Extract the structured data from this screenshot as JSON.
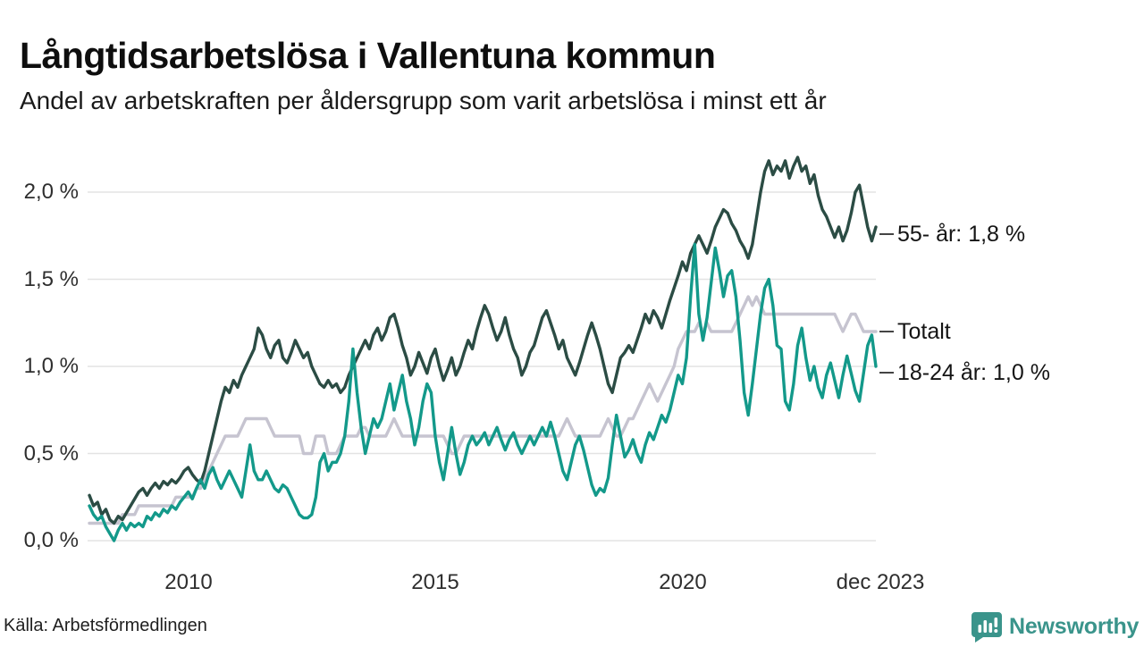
{
  "header": {
    "title": "Långtidsarbetslösa i Vallentuna kommun",
    "subtitle": "Andel av arbetskraften per åldersgrupp som varit arbetslösa i minst ett år"
  },
  "chart_data": {
    "type": "line",
    "title": "Långtidsarbetslösa i Vallentuna kommun",
    "subtitle": "Andel av arbetskraften per åldersgrupp som varit arbetslösa i minst ett år",
    "unit": "%",
    "x_frequency": "monthly",
    "grid": true,
    "grid_color": "#e3e3e3",
    "ylim": [
      0,
      2.25
    ],
    "y_grid_values": [
      0,
      0.5,
      1.0,
      1.5,
      2.0
    ],
    "y_tick_labels": [
      "2,0 %",
      "1,5 %",
      "1,0 %",
      "0,5 %",
      "0,0 %"
    ],
    "x_tick_labels": [
      "2010",
      "2015",
      "2020",
      "dec 2023"
    ],
    "x_tick_indices": [
      24,
      84,
      144,
      191
    ],
    "annotations": [
      {
        "label": "55- år: 1,8 %",
        "series": "55- år",
        "end_value": 1.8
      },
      {
        "label": "Totalt",
        "series": "Totalt",
        "end_value": 1.2
      },
      {
        "label": "18-24 år: 1,0 %",
        "series": "18-24 år",
        "end_value": 1.0
      }
    ],
    "series": [
      {
        "name": "Totalt",
        "color": "#c6c4d0",
        "values": [
          0.1,
          0.1,
          0.1,
          0.1,
          0.1,
          0.1,
          0.1,
          0.1,
          0.15,
          0.15,
          0.15,
          0.15,
          0.2,
          0.2,
          0.2,
          0.2,
          0.2,
          0.2,
          0.2,
          0.2,
          0.2,
          0.25,
          0.25,
          0.25,
          0.25,
          0.25,
          0.3,
          0.3,
          0.35,
          0.4,
          0.45,
          0.5,
          0.55,
          0.6,
          0.6,
          0.6,
          0.6,
          0.65,
          0.7,
          0.7,
          0.7,
          0.7,
          0.7,
          0.7,
          0.65,
          0.6,
          0.6,
          0.6,
          0.6,
          0.6,
          0.6,
          0.6,
          0.5,
          0.5,
          0.5,
          0.6,
          0.6,
          0.6,
          0.5,
          0.5,
          0.5,
          0.55,
          0.6,
          0.6,
          0.6,
          0.6,
          0.65,
          0.65,
          0.6,
          0.6,
          0.6,
          0.6,
          0.6,
          0.65,
          0.7,
          0.65,
          0.6,
          0.6,
          0.6,
          0.6,
          0.6,
          0.6,
          0.6,
          0.6,
          0.6,
          0.6,
          0.6,
          0.55,
          0.5,
          0.5,
          0.55,
          0.6,
          0.6,
          0.6,
          0.6,
          0.6,
          0.6,
          0.6,
          0.6,
          0.6,
          0.6,
          0.6,
          0.6,
          0.6,
          0.6,
          0.6,
          0.6,
          0.6,
          0.6,
          0.6,
          0.6,
          0.6,
          0.6,
          0.6,
          0.6,
          0.65,
          0.7,
          0.65,
          0.6,
          0.6,
          0.6,
          0.6,
          0.6,
          0.6,
          0.6,
          0.65,
          0.7,
          0.65,
          0.6,
          0.6,
          0.65,
          0.7,
          0.7,
          0.75,
          0.8,
          0.85,
          0.9,
          0.85,
          0.8,
          0.85,
          0.9,
          0.95,
          1.0,
          1.1,
          1.15,
          1.2,
          1.2,
          1.2,
          1.25,
          1.2,
          1.25,
          1.2,
          1.2,
          1.2,
          1.2,
          1.2,
          1.2,
          1.25,
          1.3,
          1.35,
          1.4,
          1.35,
          1.4,
          1.35,
          1.3,
          1.3,
          1.3,
          1.3,
          1.3,
          1.3,
          1.3,
          1.3,
          1.3,
          1.3,
          1.3,
          1.3,
          1.3,
          1.3,
          1.3,
          1.3,
          1.3,
          1.3,
          1.25,
          1.2,
          1.25,
          1.3,
          1.3,
          1.25,
          1.2,
          1.2,
          1.2,
          1.2
        ]
      },
      {
        "name": "55- år",
        "color": "#2b4c44",
        "values": [
          0.26,
          0.2,
          0.22,
          0.15,
          0.18,
          0.12,
          0.1,
          0.14,
          0.12,
          0.16,
          0.2,
          0.24,
          0.28,
          0.3,
          0.26,
          0.3,
          0.33,
          0.3,
          0.34,
          0.32,
          0.35,
          0.33,
          0.36,
          0.4,
          0.42,
          0.38,
          0.35,
          0.33,
          0.4,
          0.5,
          0.6,
          0.7,
          0.8,
          0.88,
          0.85,
          0.92,
          0.88,
          0.95,
          1.0,
          1.05,
          1.1,
          1.22,
          1.18,
          1.1,
          1.05,
          1.12,
          1.15,
          1.05,
          1.02,
          1.08,
          1.15,
          1.1,
          1.05,
          1.08,
          1.0,
          0.95,
          0.9,
          0.88,
          0.92,
          0.88,
          0.9,
          0.85,
          0.88,
          0.95,
          1.0,
          1.05,
          1.1,
          1.15,
          1.1,
          1.18,
          1.22,
          1.15,
          1.2,
          1.28,
          1.3,
          1.22,
          1.12,
          1.05,
          0.95,
          1.0,
          1.08,
          1.02,
          0.96,
          1.05,
          1.1,
          1.0,
          0.92,
          0.98,
          1.05,
          0.95,
          1.0,
          1.08,
          1.15,
          1.1,
          1.2,
          1.28,
          1.35,
          1.3,
          1.22,
          1.15,
          1.2,
          1.28,
          1.18,
          1.1,
          1.05,
          0.95,
          1.0,
          1.08,
          1.12,
          1.2,
          1.28,
          1.32,
          1.25,
          1.18,
          1.1,
          1.15,
          1.05,
          1.0,
          0.95,
          1.02,
          1.1,
          1.18,
          1.25,
          1.18,
          1.1,
          1.0,
          0.9,
          0.85,
          0.95,
          1.05,
          1.08,
          1.12,
          1.08,
          1.15,
          1.22,
          1.3,
          1.25,
          1.32,
          1.28,
          1.22,
          1.3,
          1.38,
          1.45,
          1.52,
          1.6,
          1.55,
          1.65,
          1.7,
          1.75,
          1.7,
          1.65,
          1.72,
          1.8,
          1.85,
          1.9,
          1.88,
          1.82,
          1.78,
          1.72,
          1.68,
          1.62,
          1.7,
          1.85,
          2.0,
          2.12,
          2.18,
          2.1,
          2.15,
          2.12,
          2.18,
          2.08,
          2.15,
          2.2,
          2.12,
          2.15,
          2.05,
          2.1,
          1.98,
          1.9,
          1.86,
          1.8,
          1.74,
          1.8,
          1.72,
          1.78,
          1.88,
          2.0,
          2.04,
          1.92,
          1.8,
          1.72,
          1.8
        ]
      },
      {
        "name": "18-24 år",
        "color": "#13998a",
        "values": [
          0.2,
          0.15,
          0.12,
          0.14,
          0.08,
          0.04,
          0.0,
          0.06,
          0.1,
          0.06,
          0.1,
          0.08,
          0.1,
          0.08,
          0.14,
          0.12,
          0.16,
          0.14,
          0.18,
          0.16,
          0.2,
          0.18,
          0.22,
          0.25,
          0.28,
          0.24,
          0.3,
          0.35,
          0.3,
          0.38,
          0.42,
          0.35,
          0.3,
          0.35,
          0.4,
          0.35,
          0.3,
          0.25,
          0.4,
          0.55,
          0.4,
          0.35,
          0.35,
          0.4,
          0.35,
          0.3,
          0.28,
          0.32,
          0.3,
          0.25,
          0.2,
          0.15,
          0.13,
          0.13,
          0.15,
          0.25,
          0.45,
          0.5,
          0.4,
          0.45,
          0.45,
          0.5,
          0.6,
          0.8,
          1.1,
          0.85,
          0.65,
          0.5,
          0.6,
          0.7,
          0.65,
          0.7,
          0.8,
          0.9,
          0.75,
          0.85,
          0.95,
          0.8,
          0.7,
          0.55,
          0.65,
          0.8,
          0.9,
          0.85,
          0.6,
          0.45,
          0.35,
          0.5,
          0.65,
          0.5,
          0.38,
          0.45,
          0.55,
          0.6,
          0.55,
          0.58,
          0.62,
          0.55,
          0.6,
          0.65,
          0.58,
          0.52,
          0.58,
          0.62,
          0.55,
          0.5,
          0.55,
          0.6,
          0.55,
          0.6,
          0.65,
          0.6,
          0.68,
          0.6,
          0.5,
          0.4,
          0.35,
          0.45,
          0.55,
          0.6,
          0.52,
          0.42,
          0.32,
          0.26,
          0.3,
          0.28,
          0.36,
          0.55,
          0.72,
          0.6,
          0.48,
          0.52,
          0.58,
          0.5,
          0.45,
          0.55,
          0.62,
          0.58,
          0.65,
          0.72,
          0.68,
          0.75,
          0.85,
          0.95,
          0.9,
          1.05,
          1.4,
          1.7,
          1.3,
          1.15,
          1.28,
          1.48,
          1.68,
          1.55,
          1.4,
          1.52,
          1.55,
          1.4,
          1.15,
          0.85,
          0.72,
          0.9,
          1.1,
          1.3,
          1.45,
          1.5,
          1.35,
          1.12,
          1.1,
          0.8,
          0.75,
          0.9,
          1.12,
          1.22,
          1.05,
          0.92,
          1.0,
          0.88,
          0.82,
          0.95,
          1.02,
          0.92,
          0.82,
          0.95,
          1.06,
          0.96,
          0.86,
          0.8,
          0.96,
          1.12,
          1.18,
          1.0
        ]
      }
    ]
  },
  "footer": {
    "source": "Källa: Arbetsförmedlingen",
    "logo_text": "Newsworthy",
    "logo_color": "#3a948b"
  }
}
